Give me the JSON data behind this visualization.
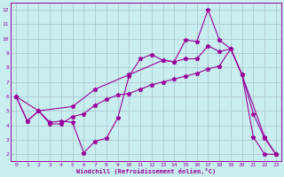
{
  "line1_x": [
    0,
    1,
    2,
    3,
    4,
    5,
    6,
    7,
    8,
    9,
    10,
    11,
    12,
    13,
    14,
    15,
    16,
    17,
    18,
    19,
    20,
    21,
    22,
    23
  ],
  "line1_y": [
    6.0,
    4.3,
    5.0,
    4.2,
    4.3,
    4.2,
    2.1,
    2.9,
    3.1,
    4.5,
    7.4,
    8.6,
    8.9,
    8.5,
    8.4,
    9.9,
    9.8,
    12.0,
    9.9,
    9.3,
    7.5,
    3.2,
    2.0,
    2.0
  ],
  "line2_x": [
    0,
    2,
    5,
    7,
    10,
    13,
    14,
    15,
    16,
    17,
    18,
    19,
    20,
    22,
    23
  ],
  "line2_y": [
    6.0,
    5.0,
    5.3,
    6.5,
    7.5,
    8.5,
    8.4,
    8.6,
    8.6,
    9.5,
    9.1,
    9.3,
    7.5,
    3.2,
    2.0
  ],
  "line3_x": [
    0,
    1,
    2,
    3,
    4,
    5,
    6,
    7,
    8,
    9,
    10,
    11,
    12,
    13,
    14,
    15,
    16,
    17,
    18,
    19,
    20,
    21,
    22,
    23
  ],
  "line3_y": [
    6.0,
    4.3,
    5.0,
    4.1,
    4.1,
    4.6,
    4.8,
    5.4,
    5.8,
    6.1,
    6.2,
    6.5,
    6.8,
    7.0,
    7.2,
    7.4,
    7.6,
    7.9,
    8.1,
    9.3,
    7.5,
    4.8,
    3.1,
    2.0
  ],
  "color": "#990099",
  "bg_color": "#c8eef0",
  "grid_color": "#b0c8d0",
  "xlabel": "Windchill (Refroidissement éolien,°C)",
  "xlim": [
    -0.5,
    23.5
  ],
  "ylim": [
    1.5,
    12.5
  ],
  "yticks": [
    2,
    3,
    4,
    5,
    6,
    7,
    8,
    9,
    10,
    11,
    12
  ],
  "xticks": [
    0,
    1,
    2,
    3,
    4,
    5,
    6,
    7,
    8,
    9,
    10,
    11,
    12,
    13,
    14,
    15,
    16,
    17,
    18,
    19,
    20,
    21,
    22,
    23
  ],
  "marker": "*",
  "linewidth": 0.8,
  "markersize": 3.5
}
